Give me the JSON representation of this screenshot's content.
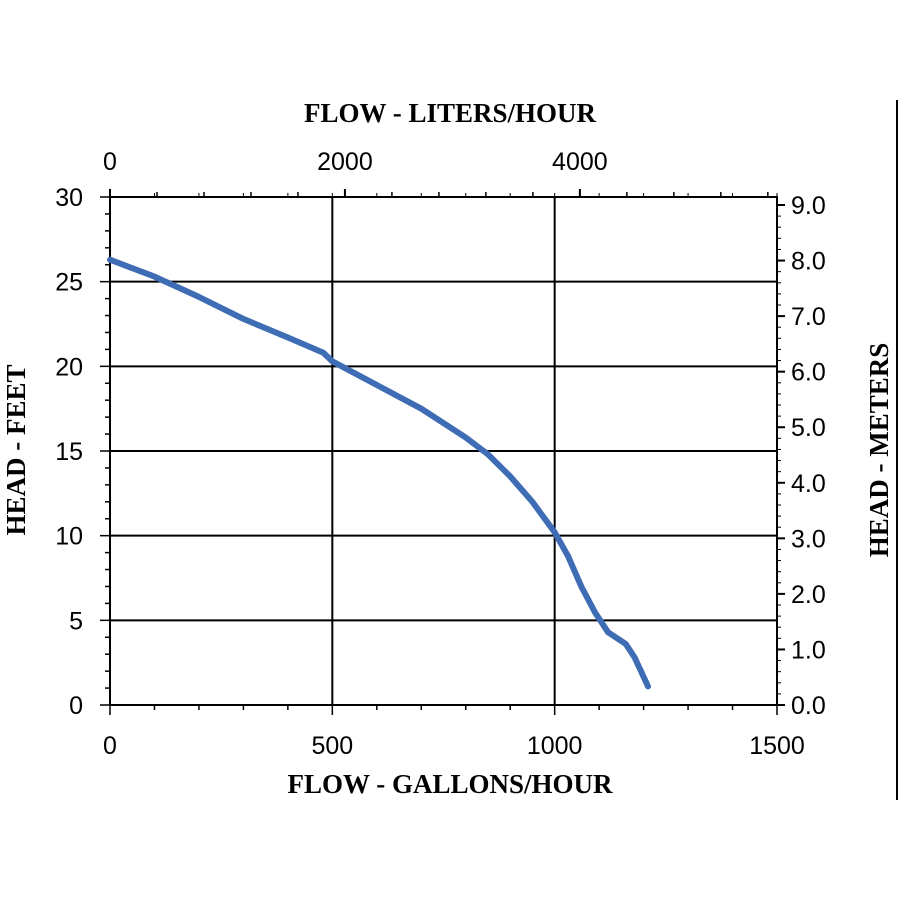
{
  "chart_data": {
    "type": "line",
    "title": "",
    "xlabel": "FLOW - GALLONS/HOUR",
    "x2label": "FLOW - LITERS/HOUR",
    "ylabel": "HEAD - FEET",
    "y2label": "HEAD - METERS",
    "xlim": [
      0,
      1500
    ],
    "ylim": [
      0,
      30
    ],
    "x_ticks": [
      "0",
      "500",
      "1000",
      "1500"
    ],
    "y_ticks": [
      "0",
      "5",
      "10",
      "15",
      "20",
      "25",
      "30"
    ],
    "x2_ticks": [
      "0",
      "2000",
      "4000"
    ],
    "y2_ticks": [
      "0.0",
      "1.0",
      "2.0",
      "3.0",
      "4.0",
      "5.0",
      "6.0",
      "7.0",
      "8.0",
      "9.0"
    ],
    "grid": true,
    "line_color": "#3F6DB5",
    "series": [
      {
        "x": [
          0,
          100,
          200,
          300,
          400,
          480,
          500,
          600,
          700,
          800,
          850,
          900,
          950,
          1000,
          1030,
          1060,
          1090,
          1120,
          1160,
          1180,
          1210
        ],
        "y": [
          26.3,
          25.3,
          24.1,
          22.8,
          21.7,
          20.8,
          20.3,
          18.9,
          17.5,
          15.8,
          14.8,
          13.5,
          12.0,
          10.2,
          8.8,
          7.0,
          5.5,
          4.3,
          3.6,
          2.8,
          1.1
        ]
      }
    ]
  }
}
